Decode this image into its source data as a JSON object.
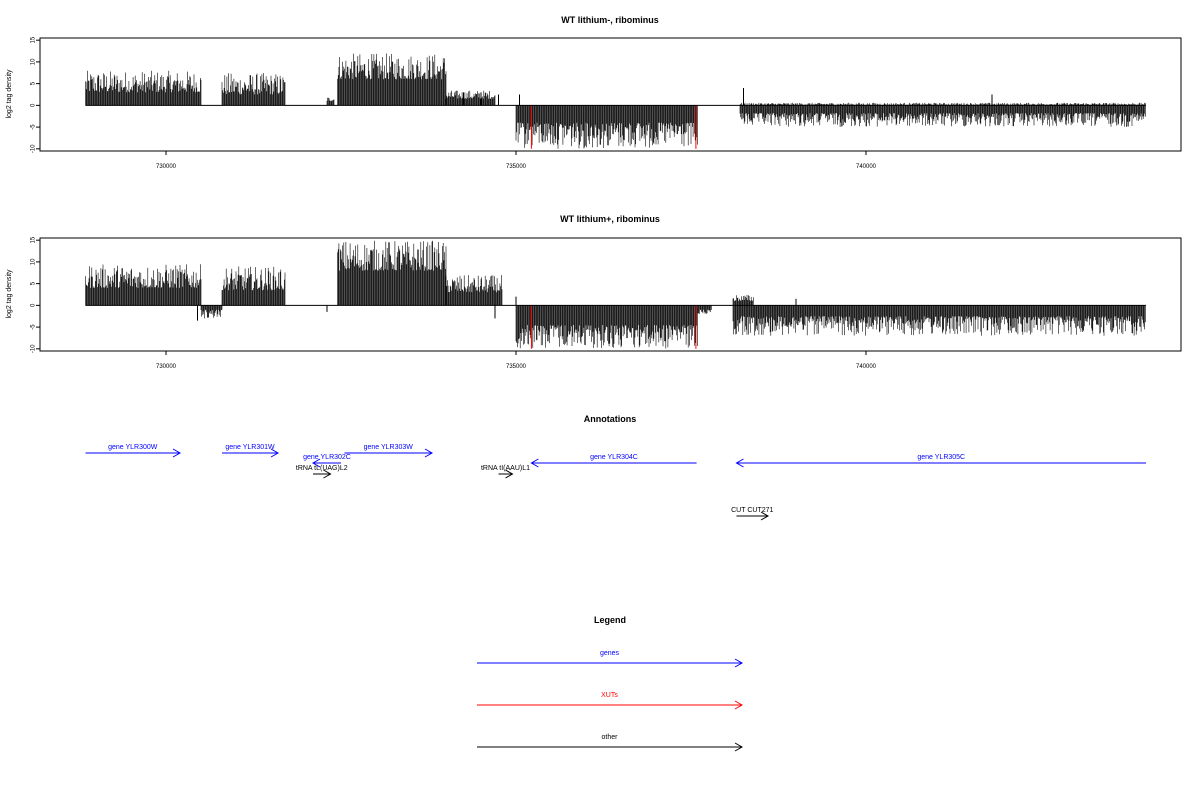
{
  "chart_data": [
    {
      "type": "bar",
      "title": "WT lithium-, ribominus",
      "ylabel": "log2 tag density",
      "xlabel": "",
      "xlim": [
        728200,
        744500
      ],
      "ylim": [
        -10.5,
        15.5
      ],
      "xticks": [
        730000,
        735000,
        740000
      ],
      "xtick_labels": [
        "730000",
        "735000",
        "740000"
      ],
      "yticks": [
        -10,
        -5,
        0,
        5,
        10,
        15
      ],
      "ytick_labels": [
        "-10",
        "-5",
        "0",
        "5",
        "10",
        "15"
      ],
      "grid": false,
      "segments": [
        {
          "start": 728850,
          "end": 730500,
          "strand": "+",
          "base": 3,
          "peak": 8
        },
        {
          "start": 730800,
          "end": 731700,
          "strand": "+",
          "base": 2.5,
          "peak": 7.5
        },
        {
          "start": 732300,
          "end": 732400,
          "strand": "+",
          "base": 1,
          "peak": 2
        },
        {
          "start": 732450,
          "end": 734000,
          "strand": "+",
          "base": 6,
          "peak": 12
        },
        {
          "start": 734000,
          "end": 734700,
          "strand": "+",
          "base": 1.5,
          "peak": 3.5
        },
        {
          "start": 735000,
          "end": 737600,
          "strand": "-",
          "base": 4,
          "peak": 10
        },
        {
          "start": 738200,
          "end": 744000,
          "strand": "-",
          "base": 1.8,
          "peak": 5
        },
        {
          "start": 738200,
          "end": 744000,
          "strand": "+",
          "base": 0.1,
          "peak": 0.6
        }
      ],
      "spikes": [
        {
          "x": 734750,
          "value": 2.5
        },
        {
          "x": 735050,
          "value": 2.5
        },
        {
          "x": 738250,
          "value": 4
        },
        {
          "x": 741800,
          "value": 2.5
        },
        {
          "x": 734500,
          "value": 3
        },
        {
          "x": 734250,
          "value": 3
        }
      ],
      "xut_marks": [
        {
          "x": 735220,
          "value": -10
        },
        {
          "x": 737570,
          "value": -10
        }
      ]
    },
    {
      "type": "bar",
      "title": "WT lithium+, ribominus",
      "ylabel": "log2 tag density",
      "xlabel": "",
      "xlim": [
        728200,
        744500
      ],
      "ylim": [
        -10.5,
        15.5
      ],
      "xticks": [
        730000,
        735000,
        740000
      ],
      "xtick_labels": [
        "730000",
        "735000",
        "740000"
      ],
      "yticks": [
        -10,
        -5,
        0,
        5,
        10,
        15
      ],
      "ytick_labels": [
        "-10",
        "-5",
        "0",
        "5",
        "10",
        "15"
      ],
      "grid": false,
      "segments": [
        {
          "start": 728850,
          "end": 730500,
          "strand": "+",
          "base": 4,
          "peak": 9.5
        },
        {
          "start": 730800,
          "end": 731700,
          "strand": "+",
          "base": 3.5,
          "peak": 9
        },
        {
          "start": 730500,
          "end": 730800,
          "strand": "-",
          "base": 1,
          "peak": 3
        },
        {
          "start": 732450,
          "end": 734000,
          "strand": "+",
          "base": 8,
          "peak": 15
        },
        {
          "start": 734000,
          "end": 734800,
          "strand": "+",
          "base": 3,
          "peak": 7
        },
        {
          "start": 735000,
          "end": 737600,
          "strand": "-",
          "base": 4.5,
          "peak": 10
        },
        {
          "start": 737600,
          "end": 737800,
          "strand": "-",
          "base": 1,
          "peak": 2
        },
        {
          "start": 738100,
          "end": 744000,
          "strand": "-",
          "base": 2.5,
          "peak": 7
        },
        {
          "start": 738100,
          "end": 738400,
          "strand": "+",
          "base": 1,
          "peak": 2.5
        }
      ],
      "spikes": [
        {
          "x": 735000,
          "value": 2
        },
        {
          "x": 734700,
          "value": -3
        },
        {
          "x": 732300,
          "value": -1.5
        },
        {
          "x": 730450,
          "value": -3.5
        },
        {
          "x": 739000,
          "value": 1.5
        }
      ],
      "xut_marks": [
        {
          "x": 735220,
          "value": -10
        },
        {
          "x": 737570,
          "value": -10
        }
      ]
    }
  ],
  "annotations": {
    "title": "Annotations",
    "xlim": [
      728200,
      744500
    ],
    "features": [
      {
        "label": "gene YLR300W",
        "start": 728850,
        "end": 730200,
        "dir": "right",
        "color": "#0000ff",
        "row": 0
      },
      {
        "label": "gene YLR301W",
        "start": 730800,
        "end": 731600,
        "dir": "right",
        "color": "#0000ff",
        "row": 0
      },
      {
        "label": "gene YLR302C",
        "start": 732100,
        "end": 732500,
        "dir": "left",
        "color": "#0000ff",
        "row": 1
      },
      {
        "label": "gene YLR303W",
        "start": 732550,
        "end": 733800,
        "dir": "right",
        "color": "#0000ff",
        "row": 0
      },
      {
        "label": "tRNA tL(UAG)L2",
        "start": 732100,
        "end": 732350,
        "dir": "right",
        "color": "#000000",
        "row": 2
      },
      {
        "label": "tRNA tI(AAU)L1",
        "start": 734750,
        "end": 734950,
        "dir": "right",
        "color": "#000000",
        "row": 2
      },
      {
        "label": "gene YLR304C",
        "start": 735220,
        "end": 737580,
        "dir": "left",
        "color": "#0000ff",
        "row": 1
      },
      {
        "label": "gene YLR305C",
        "start": 738150,
        "end": 744000,
        "dir": "left",
        "color": "#0000ff",
        "row": 1
      },
      {
        "label": "CUT CUT271",
        "start": 738150,
        "end": 738600,
        "dir": "right",
        "color": "#000000",
        "row": 4
      }
    ]
  },
  "legend": {
    "title": "Legend",
    "items": [
      {
        "label": "genes",
        "color": "#0000ff"
      },
      {
        "label": "XUTs",
        "color": "#ff0000"
      },
      {
        "label": "other",
        "color": "#000000"
      }
    ]
  }
}
